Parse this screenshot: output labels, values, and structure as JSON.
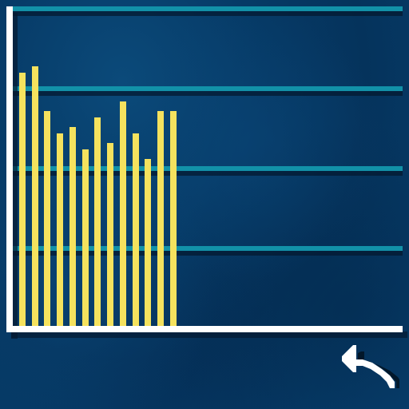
{
  "palette": {
    "bar": "#f5e25e",
    "gridline": "#1291a8",
    "gridline_shadow": "#041a30",
    "axis": "#ffffff",
    "back_icon": "#ffffff"
  },
  "chart_data": {
    "type": "bar",
    "title": "",
    "xlabel": "",
    "ylabel": "",
    "ylim": [
      0,
      100
    ],
    "gridlines": [
      25,
      50,
      75,
      100
    ],
    "values": [
      80,
      82,
      68,
      61,
      63,
      56,
      66,
      58,
      71,
      61,
      53,
      68,
      68
    ],
    "slots": 31
  },
  "controls": {
    "back_icon": "back-arrow-icon"
  }
}
